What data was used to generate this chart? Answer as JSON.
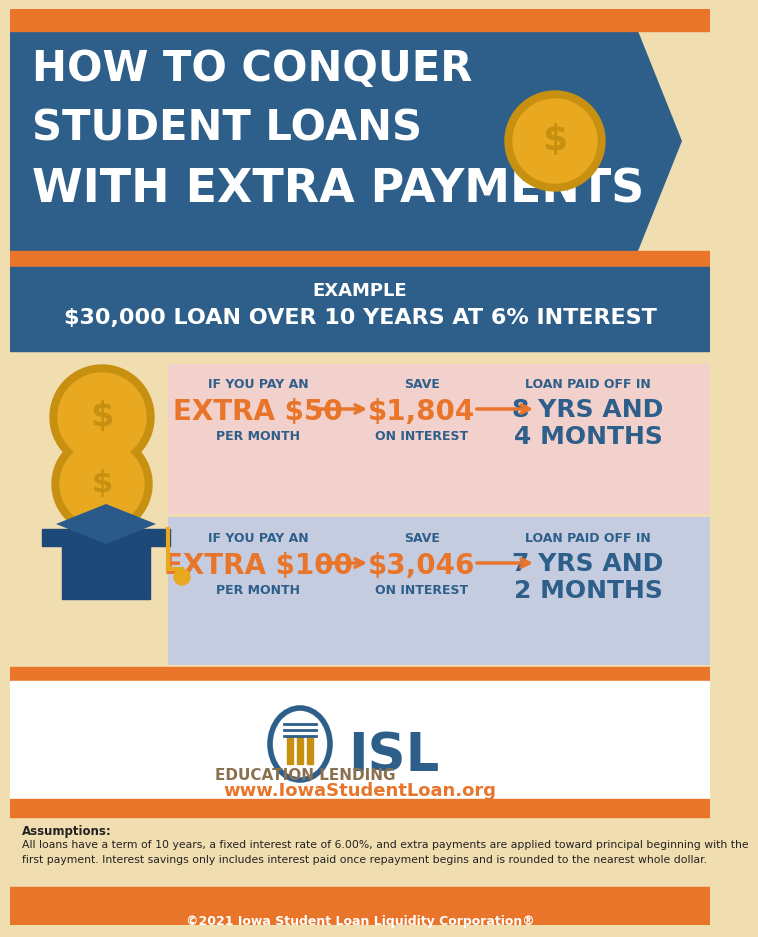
{
  "bg_color": "#f0ddb0",
  "orange_color": "#e8752a",
  "blue_dark": "#2d5f8a",
  "blue_medium": "#3a6fa8",
  "gold_dark": "#c89010",
  "gold_light": "#e8a820",
  "pink_bg": "#f2d0cc",
  "lavender_bg": "#c5cce0",
  "white": "#ffffff",
  "text_dark": "#222222",
  "title_line1": "HOW TO CONQUER",
  "title_line2": "STUDENT LOANS",
  "title_line3": "WITH EXTRA PAYMENTS",
  "example_line1": "EXAMPLE",
  "example_line2": "$30,000 LOAN OVER 10 YEARS AT 6% INTEREST",
  "row1_label1": "IF YOU PAY AN",
  "row1_extra": "EXTRA $50",
  "row1_label2": "PER MONTH",
  "row1_save_label": "SAVE",
  "row1_save": "$1,804",
  "row1_save_sub": "ON INTEREST",
  "row1_result_label": "LOAN PAID OFF IN",
  "row1_result1": "8 YRS AND",
  "row1_result2": "4 MONTHS",
  "row2_label1": "IF YOU PAY AN",
  "row2_extra": "EXTRA $100",
  "row2_label2": "PER MONTH",
  "row2_save_label": "SAVE",
  "row2_save": "$3,046",
  "row2_save_sub": "ON INTEREST",
  "row2_result_label": "LOAN PAID OFF IN",
  "row2_result1": "7 YRS AND",
  "row2_result2": "2 MONTHS",
  "isl_text": "ISL",
  "edu_text": "EDUCATION LENDING",
  "website": "www.IowaStudentLoan.org",
  "assumptions_title": "Assumptions:",
  "assumptions_text1": "All loans have a term of 10 years, a fixed interest rate of 6.00%, and extra payments are applied toward principal beginning with the",
  "assumptions_text2": "first payment. Interest savings only includes interest paid once repayment begins and is rounded to the nearest whole dollar.",
  "copyright": "©2021 Iowa Student Loan Liquidity Corporation®"
}
